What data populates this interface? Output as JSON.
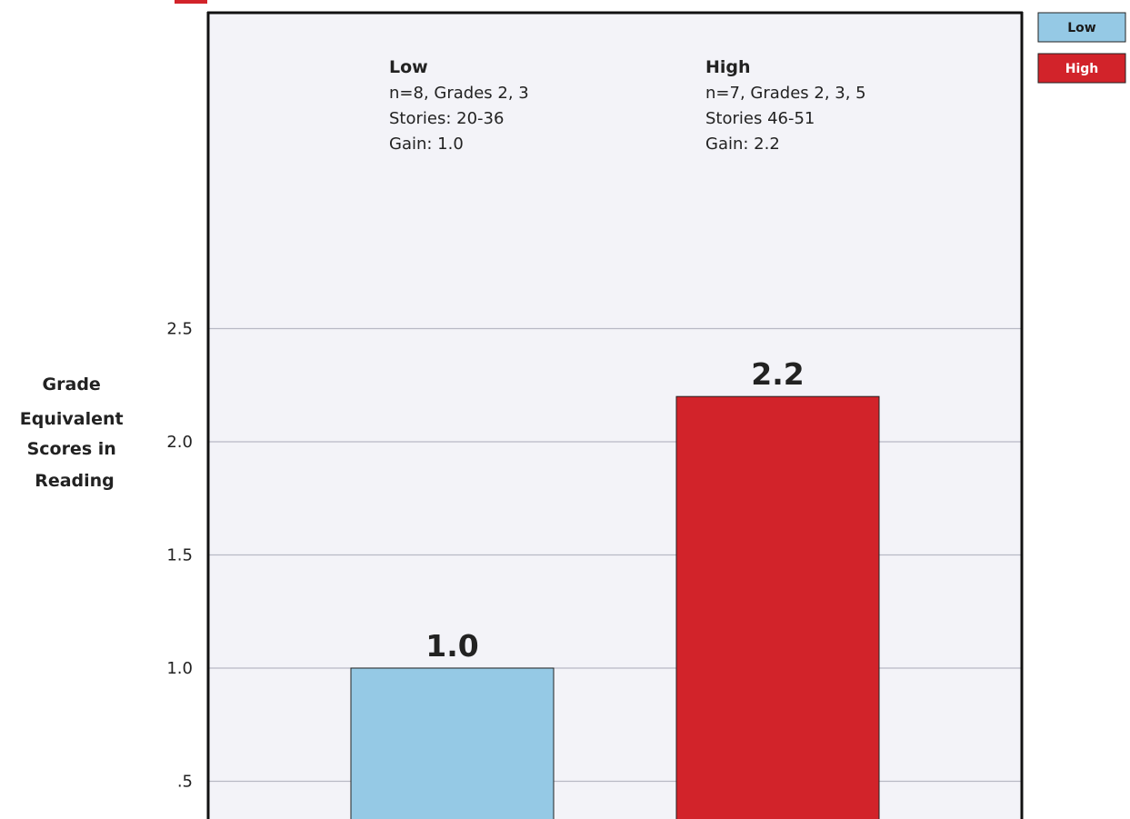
{
  "chart_data": {
    "type": "bar",
    "categories": [
      "Low",
      "High"
    ],
    "values": [
      1.0,
      2.2
    ],
    "value_labels": [
      "1.0",
      "2.2"
    ],
    "ylabel": "Grade Equivalent Scores in Reading",
    "ylabel_lines": [
      "Grade",
      "Equivalent",
      "Scores in",
      "Reading"
    ],
    "ylim": [
      0,
      3
    ],
    "yticks": [
      0.5,
      1.0,
      1.5,
      2.0,
      2.5
    ],
    "ytick_labels": [
      ".5",
      "1.0",
      "1.5",
      "2.0",
      "2.5"
    ],
    "grid": true,
    "legend_placement": "top-right",
    "legend": [
      "Low",
      "High"
    ],
    "colors": {
      "Low": "#95c9e5",
      "High": "#d2232a",
      "plot_background": "#f3f3f8",
      "grid": "#b7b9c4",
      "frame": "#111111"
    },
    "annotations": [
      {
        "group": "Low",
        "lines": [
          "n=8, Grades 2, 3",
          "Stories: 20-36",
          "Gain: 1.0"
        ]
      },
      {
        "group": "High",
        "lines": [
          "n=7, Grades 2, 3, 5",
          "Stories 46-51",
          "Gain: 2.2"
        ]
      }
    ]
  }
}
